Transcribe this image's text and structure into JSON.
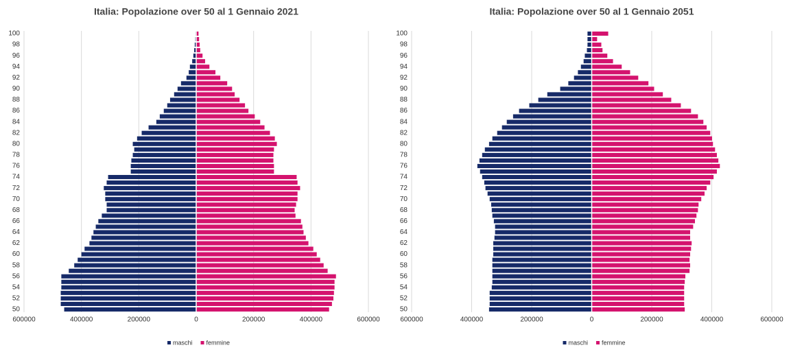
{
  "chart_data": [
    {
      "type": "bar",
      "orientation": "horizontal",
      "title": "Italia: Popolazione over 50 al 1 Gennaio 2021",
      "categories": [
        50,
        null,
        52,
        null,
        54,
        null,
        56,
        null,
        58,
        null,
        60,
        null,
        62,
        null,
        64,
        null,
        66,
        null,
        68,
        null,
        70,
        null,
        72,
        null,
        74,
        null,
        76,
        null,
        78,
        null,
        80,
        null,
        82,
        null,
        84,
        null,
        86,
        null,
        88,
        null,
        90,
        null,
        92,
        null,
        94,
        null,
        96,
        null,
        98,
        null,
        100
      ],
      "series": [
        {
          "name": "maschi",
          "color": "#162a68",
          "values": [
            -460000,
            -472000,
            -472000,
            -472000,
            -470000,
            -470000,
            -470000,
            -444000,
            -425000,
            -413000,
            -400000,
            -389000,
            -372000,
            -365000,
            -358000,
            -350000,
            -341000,
            -329000,
            -312000,
            -312000,
            -317000,
            -317000,
            -322000,
            -312000,
            -307000,
            -228000,
            -228000,
            -226000,
            -221000,
            -216000,
            -221000,
            -206000,
            -190000,
            -166000,
            -139000,
            -127000,
            -113000,
            -101000,
            -91000,
            -77000,
            -65000,
            -53000,
            -34000,
            -26000,
            -22000,
            -14000,
            -10000,
            -7000,
            -5000,
            -3000,
            -2000
          ]
        },
        {
          "name": "femmine",
          "color": "#d4136e",
          "values": [
            463000,
            473000,
            478000,
            480000,
            482000,
            482000,
            487000,
            458000,
            444000,
            432000,
            420000,
            408000,
            391000,
            382000,
            374000,
            370000,
            365000,
            346000,
            343000,
            348000,
            353000,
            353000,
            362000,
            353000,
            350000,
            271000,
            271000,
            269000,
            269000,
            271000,
            281000,
            274000,
            257000,
            238000,
            223000,
            204000,
            182000,
            170000,
            151000,
            134000,
            125000,
            108000,
            84000,
            67000,
            46000,
            31000,
            22000,
            14000,
            12000,
            10000,
            8000
          ]
        }
      ],
      "xlim": [
        -600000,
        600000
      ],
      "xticks": [
        {
          "value": -600000,
          "label": "600000"
        },
        {
          "value": -400000,
          "label": "400000"
        },
        {
          "value": -200000,
          "label": "200000"
        },
        0,
        200000,
        400000,
        600000
      ],
      "grid": true,
      "legend": "bottom"
    },
    {
      "type": "bar",
      "orientation": "horizontal",
      "title": "Italia: Popolazione over 50 al 1 Gennaio 2051",
      "categories": [
        50,
        null,
        52,
        null,
        54,
        null,
        56,
        null,
        58,
        null,
        60,
        null,
        62,
        null,
        64,
        null,
        66,
        null,
        68,
        null,
        70,
        null,
        72,
        null,
        74,
        null,
        76,
        null,
        78,
        null,
        80,
        null,
        82,
        null,
        84,
        null,
        86,
        null,
        88,
        null,
        90,
        null,
        92,
        null,
        94,
        null,
        96,
        null,
        98,
        null,
        100
      ],
      "series": [
        {
          "name": "maschi",
          "color": "#162a68",
          "values": [
            -342000,
            -340000,
            -340000,
            -340000,
            -333000,
            -331000,
            -331000,
            -331000,
            -331000,
            -331000,
            -328000,
            -328000,
            -328000,
            -324000,
            -322000,
            -322000,
            -326000,
            -331000,
            -333000,
            -335000,
            -340000,
            -347000,
            -354000,
            -358000,
            -365000,
            -372000,
            -381000,
            -374000,
            -365000,
            -356000,
            -342000,
            -331000,
            -315000,
            -299000,
            -283000,
            -262000,
            -242000,
            -208000,
            -178000,
            -148000,
            -105000,
            -78000,
            -59000,
            -46000,
            -36000,
            -27000,
            -23000,
            -16000,
            -14000,
            -14000,
            -14000
          ]
        },
        {
          "name": "femmine",
          "color": "#d4136e",
          "values": [
            310000,
            308000,
            308000,
            308000,
            308000,
            310000,
            312000,
            326000,
            328000,
            326000,
            328000,
            331000,
            333000,
            328000,
            328000,
            338000,
            344000,
            349000,
            354000,
            356000,
            365000,
            376000,
            383000,
            395000,
            406000,
            417000,
            427000,
            422000,
            417000,
            411000,
            404000,
            401000,
            395000,
            383000,
            372000,
            354000,
            331000,
            297000,
            265000,
            237000,
            208000,
            189000,
            155000,
            128000,
            100000,
            71000,
            52000,
            36000,
            32000,
            18000,
            55000
          ]
        }
      ],
      "xlim": [
        -600000,
        600000
      ],
      "xticks": [
        {
          "value": -600000,
          "label": "600000"
        },
        {
          "value": -400000,
          "label": "400000"
        },
        {
          "value": -200000,
          "label": "200000"
        },
        0,
        200000,
        400000,
        600000
      ],
      "grid": true,
      "legend": "bottom"
    }
  ]
}
